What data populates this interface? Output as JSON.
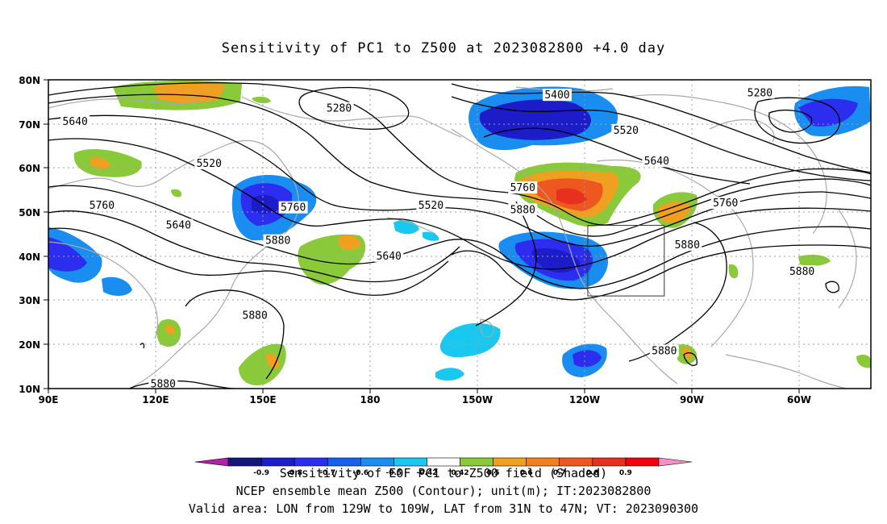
{
  "title": "Sensitivity of PC1 to Z500 at 2023082800 +4.0 day",
  "map": {
    "lon_ticks": [
      "90E",
      "120E",
      "150E",
      "180",
      "150W",
      "120W",
      "90W",
      "60W"
    ],
    "lat_ticks": [
      "80N",
      "70N",
      "60N",
      "50N",
      "40N",
      "30N",
      "20N",
      "10N"
    ],
    "contour_labels": [
      {
        "text": "5280",
        "lon": 166,
        "lat": 73.5
      },
      {
        "text": "5400",
        "lon": -137,
        "lat": 76.5
      },
      {
        "text": "5280",
        "lon": -84,
        "lat": 77
      },
      {
        "text": "5640",
        "lon": 97,
        "lat": 70.5
      },
      {
        "text": "5520",
        "lon": -119,
        "lat": 68.5
      },
      {
        "text": "5520",
        "lon": 132,
        "lat": 61
      },
      {
        "text": "5640",
        "lon": -111,
        "lat": 61.5
      },
      {
        "text": "5760",
        "lon": -146,
        "lat": 55.5
      },
      {
        "text": "5760",
        "lon": 104,
        "lat": 51.5
      },
      {
        "text": "5760",
        "lon": 154,
        "lat": 51
      },
      {
        "text": "5520",
        "lon": -170,
        "lat": 51.5
      },
      {
        "text": "5880",
        "lon": -146,
        "lat": 50.5
      },
      {
        "text": "5760",
        "lon": -93,
        "lat": 52
      },
      {
        "text": "5640",
        "lon": 124,
        "lat": 47
      },
      {
        "text": "5880",
        "lon": 150,
        "lat": 43.5
      },
      {
        "text": "5640",
        "lon": 179,
        "lat": 40
      },
      {
        "text": "5880",
        "lon": -103,
        "lat": 42.5
      },
      {
        "text": "5880",
        "lon": -73,
        "lat": 36.5
      },
      {
        "text": "5880",
        "lon": 144,
        "lat": 26.5
      },
      {
        "text": "5880",
        "lon": -109,
        "lat": 18.5
      },
      {
        "text": "5880",
        "lon": 120,
        "lat": 11
      }
    ],
    "valid_box": {
      "lon_from": -129,
      "lon_to": -109,
      "lat_from": 31,
      "lat_to": 47
    }
  },
  "colorbar": {
    "colors": [
      "#b81fa8",
      "#16167a",
      "#1c1cc8",
      "#2d2df0",
      "#1a5ef0",
      "#1a8ef0",
      "#18c8ee",
      "#ffffff",
      "#89c93a",
      "#f0a020",
      "#f08020",
      "#ef5720",
      "#e8301e",
      "#f00010",
      "#f292c8"
    ],
    "ticks": [
      "-0.9",
      "-0.8",
      "-0.7",
      "-0.6",
      "-0.5",
      "-0.42",
      "0.42",
      "0.5",
      "0.6",
      "0.7",
      "0.8",
      "0.9"
    ]
  },
  "footer": {
    "line1": "Sensitivity of EOF PC1 to Z500 field (Shaded)",
    "line2": "NCEP ensemble mean Z500 (Contour); unit(m); IT:2023082800",
    "line3": "Valid area: LON from 129W to 109W, LAT from 31N to 47N; VT: 2023090300"
  }
}
